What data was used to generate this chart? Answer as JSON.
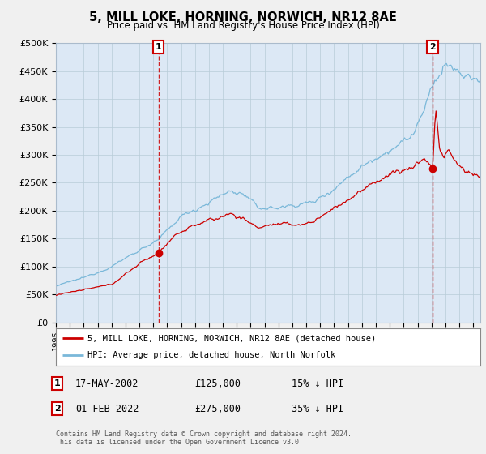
{
  "title": "5, MILL LOKE, HORNING, NORWICH, NR12 8AE",
  "subtitle": "Price paid vs. HM Land Registry's House Price Index (HPI)",
  "ylim": [
    0,
    500000
  ],
  "yticks": [
    0,
    50000,
    100000,
    150000,
    200000,
    250000,
    300000,
    350000,
    400000,
    450000,
    500000
  ],
  "ytick_labels": [
    "£0",
    "£50K",
    "£100K",
    "£150K",
    "£200K",
    "£250K",
    "£300K",
    "£350K",
    "£400K",
    "£450K",
    "£500K"
  ],
  "xlim_start": 1995.0,
  "xlim_end": 2025.5,
  "sale1_x": 2002.375,
  "sale1_y": 125000,
  "sale2_x": 2022.083,
  "sale2_y": 275000,
  "sale1_date": "17-MAY-2002",
  "sale1_price": "£125,000",
  "sale1_hpi": "15% ↓ HPI",
  "sale2_date": "01-FEB-2022",
  "sale2_price": "£275,000",
  "sale2_hpi": "35% ↓ HPI",
  "legend1": "5, MILL LOKE, HORNING, NORWICH, NR12 8AE (detached house)",
  "legend2": "HPI: Average price, detached house, North Norfolk",
  "footer": "Contains HM Land Registry data © Crown copyright and database right 2024.\nThis data is licensed under the Open Government Licence v3.0.",
  "hpi_color": "#7ab8d9",
  "sale_color": "#cc0000",
  "plot_bg": "#dce8f5",
  "grid_color": "#c0d0e0",
  "fig_bg": "#f0f0f0"
}
